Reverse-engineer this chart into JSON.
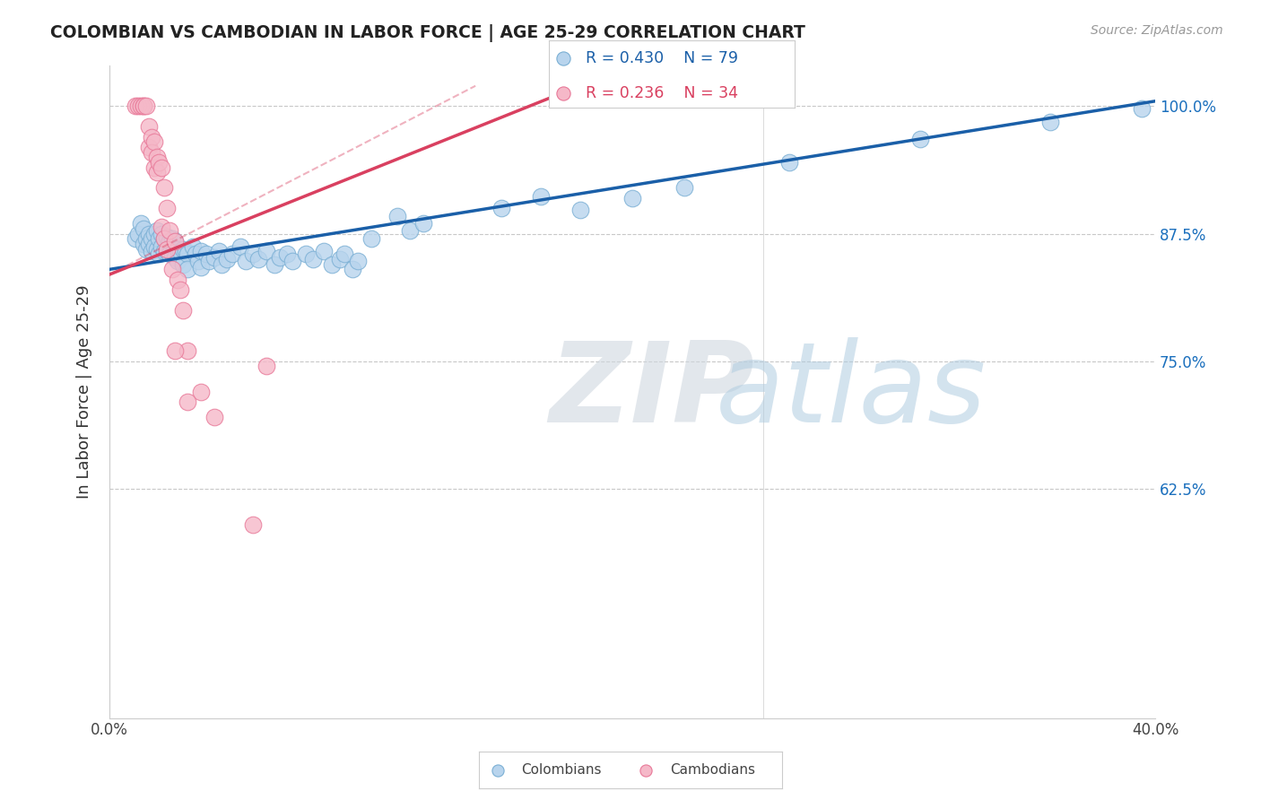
{
  "title": "COLOMBIAN VS CAMBODIAN IN LABOR FORCE | AGE 25-29 CORRELATION CHART",
  "source_text": "Source: ZipAtlas.com",
  "ylabel": "In Labor Force | Age 25-29",
  "xlim": [
    0.0,
    0.4
  ],
  "ylim": [
    0.4,
    1.04
  ],
  "xticks": [
    0.0,
    0.05,
    0.1,
    0.15,
    0.2,
    0.25,
    0.3,
    0.35,
    0.4
  ],
  "xticklabels": [
    "0.0%",
    "",
    "",
    "",
    "",
    "",
    "",
    "",
    "40.0%"
  ],
  "ytick_positions": [
    0.625,
    0.75,
    0.875,
    1.0
  ],
  "ytick_labels": [
    "62.5%",
    "75.0%",
    "87.5%",
    "100.0%"
  ],
  "grid_color": "#c8c8c8",
  "background_color": "#ffffff",
  "colombian_color": "#b8d4ed",
  "cambodian_color": "#f5b8c8",
  "colombian_edge_color": "#7aafd4",
  "cambodian_edge_color": "#e87898",
  "colombian_line_color": "#1a5fa8",
  "cambodian_line_color": "#d94060",
  "r_colombian": 0.43,
  "n_colombian": 79,
  "r_cambodian": 0.236,
  "n_cambodian": 34,
  "watermark_zip": "ZIP",
  "watermark_atlas": "atlas",
  "watermark_color_zip": "#c8dce8",
  "watermark_color_atlas": "#b0cce0",
  "colombian_points": [
    [
      0.01,
      0.87
    ],
    [
      0.011,
      0.875
    ],
    [
      0.012,
      0.885
    ],
    [
      0.013,
      0.88
    ],
    [
      0.013,
      0.865
    ],
    [
      0.014,
      0.87
    ],
    [
      0.014,
      0.86
    ],
    [
      0.015,
      0.875
    ],
    [
      0.015,
      0.865
    ],
    [
      0.016,
      0.87
    ],
    [
      0.016,
      0.858
    ],
    [
      0.017,
      0.875
    ],
    [
      0.017,
      0.862
    ],
    [
      0.018,
      0.878
    ],
    [
      0.018,
      0.86
    ],
    [
      0.019,
      0.87
    ],
    [
      0.019,
      0.855
    ],
    [
      0.02,
      0.875
    ],
    [
      0.02,
      0.862
    ],
    [
      0.021,
      0.87
    ],
    [
      0.021,
      0.858
    ],
    [
      0.022,
      0.872
    ],
    [
      0.022,
      0.858
    ],
    [
      0.023,
      0.868
    ],
    [
      0.023,
      0.855
    ],
    [
      0.024,
      0.87
    ],
    [
      0.024,
      0.855
    ],
    [
      0.025,
      0.868
    ],
    [
      0.025,
      0.852
    ],
    [
      0.026,
      0.86
    ],
    [
      0.026,
      0.848
    ],
    [
      0.027,
      0.858
    ],
    [
      0.028,
      0.86
    ],
    [
      0.028,
      0.845
    ],
    [
      0.029,
      0.858
    ],
    [
      0.03,
      0.855
    ],
    [
      0.03,
      0.84
    ],
    [
      0.032,
      0.862
    ],
    [
      0.033,
      0.855
    ],
    [
      0.034,
      0.848
    ],
    [
      0.035,
      0.858
    ],
    [
      0.035,
      0.842
    ],
    [
      0.037,
      0.855
    ],
    [
      0.038,
      0.848
    ],
    [
      0.04,
      0.852
    ],
    [
      0.042,
      0.858
    ],
    [
      0.043,
      0.845
    ],
    [
      0.045,
      0.85
    ],
    [
      0.047,
      0.855
    ],
    [
      0.05,
      0.862
    ],
    [
      0.052,
      0.848
    ],
    [
      0.055,
      0.855
    ],
    [
      0.057,
      0.85
    ],
    [
      0.06,
      0.858
    ],
    [
      0.063,
      0.845
    ],
    [
      0.065,
      0.852
    ],
    [
      0.068,
      0.855
    ],
    [
      0.07,
      0.848
    ],
    [
      0.075,
      0.855
    ],
    [
      0.078,
      0.85
    ],
    [
      0.082,
      0.858
    ],
    [
      0.085,
      0.845
    ],
    [
      0.088,
      0.85
    ],
    [
      0.09,
      0.855
    ],
    [
      0.093,
      0.84
    ],
    [
      0.095,
      0.848
    ],
    [
      0.1,
      0.87
    ],
    [
      0.11,
      0.892
    ],
    [
      0.115,
      0.878
    ],
    [
      0.12,
      0.885
    ],
    [
      0.15,
      0.9
    ],
    [
      0.165,
      0.912
    ],
    [
      0.18,
      0.898
    ],
    [
      0.2,
      0.91
    ],
    [
      0.22,
      0.92
    ],
    [
      0.26,
      0.945
    ],
    [
      0.31,
      0.968
    ],
    [
      0.36,
      0.985
    ],
    [
      0.395,
      0.998
    ]
  ],
  "cambodian_points": [
    [
      0.01,
      1.0
    ],
    [
      0.011,
      1.0
    ],
    [
      0.012,
      1.0
    ],
    [
      0.013,
      1.0
    ],
    [
      0.013,
      1.0
    ],
    [
      0.014,
      1.0
    ],
    [
      0.015,
      0.98
    ],
    [
      0.015,
      0.96
    ],
    [
      0.016,
      0.97
    ],
    [
      0.016,
      0.955
    ],
    [
      0.017,
      0.965
    ],
    [
      0.017,
      0.94
    ],
    [
      0.018,
      0.95
    ],
    [
      0.018,
      0.935
    ],
    [
      0.019,
      0.945
    ],
    [
      0.02,
      0.94
    ],
    [
      0.02,
      0.882
    ],
    [
      0.021,
      0.92
    ],
    [
      0.021,
      0.87
    ],
    [
      0.022,
      0.9
    ],
    [
      0.022,
      0.86
    ],
    [
      0.023,
      0.878
    ],
    [
      0.024,
      0.84
    ],
    [
      0.025,
      0.868
    ],
    [
      0.026,
      0.83
    ],
    [
      0.027,
      0.82
    ],
    [
      0.028,
      0.8
    ],
    [
      0.03,
      0.76
    ],
    [
      0.035,
      0.72
    ],
    [
      0.04,
      0.695
    ],
    [
      0.055,
      0.59
    ],
    [
      0.06,
      0.745
    ],
    [
      0.025,
      0.76
    ],
    [
      0.03,
      0.71
    ]
  ]
}
